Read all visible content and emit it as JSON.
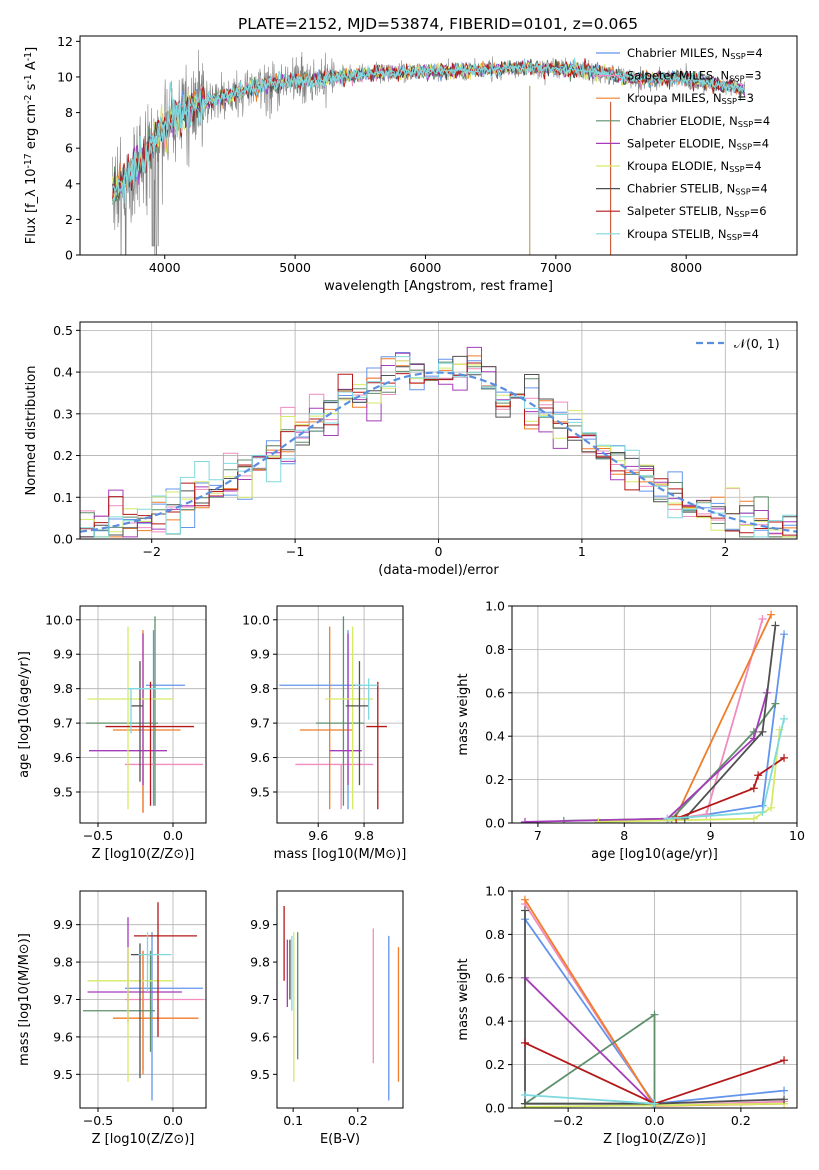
{
  "chart_data": [
    {
      "id": "spectrum",
      "type": "line",
      "title": "PLATE=2152, MJD=53874, FIBERID=0101, z=0.065",
      "xlabel": "wavelength [Angstrom, rest frame]",
      "ylabel": "Flux [f_λ 10^-17 erg cm^-2 s^-1 A^-1]",
      "xlim": [
        3350,
        8850
      ],
      "ylim": [
        0,
        12.3
      ],
      "xticks": [
        4000,
        5000,
        6000,
        7000,
        8000
      ],
      "yticks": [
        0,
        2,
        4,
        6,
        8,
        10,
        12
      ],
      "data_color": "#808080",
      "data_range": [
        3600,
        8450
      ],
      "model_color": "#7fd9de",
      "legend_position": "upper right",
      "legend": [
        {
          "label": "Chabrier MILES, N_SSP=4",
          "color": "#6495ed"
        },
        {
          "label": "Salpeter MILES, N_SSP=3",
          "color": "#f08cbe"
        },
        {
          "label": "Kroupa MILES, N_SSP=3",
          "color": "#f07d28"
        },
        {
          "label": "Chabrier ELODIE, N_SSP=4",
          "color": "#5f8f6b"
        },
        {
          "label": "Salpeter ELODIE, N_SSP=4",
          "color": "#a53cba"
        },
        {
          "label": "Kroupa ELODIE, N_SSP=4",
          "color": "#d6ea66"
        },
        {
          "label": "Chabrier STELIB, N_SSP=4",
          "color": "#505050"
        },
        {
          "label": "Salpeter STELIB, N_SSP=6",
          "color": "#b41818"
        },
        {
          "label": "Kroupa STELIB, N_SSP=4",
          "color": "#7fd9de"
        }
      ],
      "continuum": [
        [
          3600,
          3.6
        ],
        [
          3800,
          5.0
        ],
        [
          4000,
          7.3
        ],
        [
          4200,
          8.3
        ],
        [
          4500,
          9.0
        ],
        [
          4800,
          9.6
        ],
        [
          5200,
          9.9
        ],
        [
          5600,
          10.2
        ],
        [
          6000,
          10.3
        ],
        [
          6400,
          10.4
        ],
        [
          6800,
          10.5
        ],
        [
          7200,
          10.4
        ],
        [
          7600,
          9.9
        ],
        [
          8000,
          9.9
        ],
        [
          8450,
          9.3
        ]
      ]
    },
    {
      "id": "residuals",
      "type": "histogram",
      "xlabel": "(data-model)/error",
      "ylabel": "Normed distribution",
      "xlim": [
        -2.5,
        2.5
      ],
      "ylim": [
        0,
        0.52
      ],
      "xticks": [
        -2,
        -1,
        0,
        1,
        2
      ],
      "yticks": [
        0.0,
        0.1,
        0.2,
        0.3,
        0.4,
        0.5
      ],
      "grid": true,
      "legend": [
        {
          "label": "𝒩(0, 1)",
          "color": "#5a8fe0",
          "style": "dashed"
        }
      ],
      "bin_width": 0.1,
      "n_models": 9
    },
    {
      "id": "age-vs-Z",
      "type": "scatter",
      "xlabel": "Z [log10(Z/Z⊙)]",
      "ylabel": "age  [log10(age/yr)]",
      "xlim": [
        -0.62,
        0.22
      ],
      "ylim": [
        9.41,
        10.04
      ],
      "xticks": [
        -0.5,
        0.0
      ],
      "yticks": [
        9.5,
        9.6,
        9.7,
        9.8,
        9.9,
        10.0
      ],
      "grid": true,
      "points": [
        {
          "x": -0.13,
          "y": 9.81,
          "xerr": [
            0.05,
            0.21
          ],
          "yerr": [
            0.35,
            0.16
          ],
          "color": "#6495ed"
        },
        {
          "x": -0.2,
          "y": 9.58,
          "xerr": [
            0.12,
            0.4
          ],
          "yerr": [
            0.14,
            0.0
          ],
          "color": "#f08cbe"
        },
        {
          "x": -0.2,
          "y": 9.68,
          "xerr": [
            0.2,
            0.25
          ],
          "yerr": [
            0.24,
            0.29
          ],
          "color": "#f07d28"
        },
        {
          "x": -0.12,
          "y": 9.7,
          "xerr": [
            0.46,
            0.02
          ],
          "yerr": [
            0.24,
            0.31
          ],
          "color": "#5f8f6b"
        },
        {
          "x": -0.2,
          "y": 9.62,
          "xerr": [
            0.36,
            0.16
          ],
          "yerr": [
            0.1,
            0.34
          ],
          "color": "#a53cba"
        },
        {
          "x": -0.3,
          "y": 9.77,
          "xerr": [
            0.27,
            0.3
          ],
          "yerr": [
            0.32,
            0.21
          ],
          "color": "#d6ea66"
        },
        {
          "x": -0.22,
          "y": 9.75,
          "xerr": [
            0.06,
            0.02
          ],
          "yerr": [
            0.22,
            0.13
          ],
          "color": "#505050"
        },
        {
          "x": -0.15,
          "y": 9.69,
          "xerr": [
            0.3,
            0.29
          ],
          "yerr": [
            0.23,
            0.13
          ],
          "color": "#b41818"
        },
        {
          "x": -0.28,
          "y": 9.8,
          "xerr": [
            0.02,
            0.26
          ],
          "yerr": [
            0.13,
            0.0
          ],
          "color": "#7fd9de"
        }
      ]
    },
    {
      "id": "age-vs-mass",
      "type": "scatter",
      "xlabel": "mass [log10(M/M⊙)]",
      "xlim": [
        9.42,
        9.97
      ],
      "ylim": [
        9.41,
        10.04
      ],
      "xticks": [
        9.6,
        9.8
      ],
      "yticks": [
        9.5,
        9.6,
        9.7,
        9.8,
        9.9,
        10.0
      ],
      "grid": true,
      "points": [
        {
          "x": 9.73,
          "y": 9.81,
          "xerr": [
            0.3,
            0.06
          ],
          "yerr": [
            0.36,
            0.16
          ],
          "color": "#6495ed"
        },
        {
          "x": 9.7,
          "y": 9.58,
          "xerr": [
            0.2,
            0.14
          ],
          "yerr": [
            0.13,
            0.0
          ],
          "color": "#f08cbe"
        },
        {
          "x": 9.65,
          "y": 9.68,
          "xerr": [
            0.13,
            0.1
          ],
          "yerr": [
            0.23,
            0.3
          ],
          "color": "#f07d28"
        },
        {
          "x": 9.71,
          "y": 9.7,
          "xerr": [
            0.12,
            0.09
          ],
          "yerr": [
            0.24,
            0.31
          ],
          "color": "#5f8f6b"
        },
        {
          "x": 9.73,
          "y": 9.62,
          "xerr": [
            0.08,
            0.06
          ],
          "yerr": [
            0.1,
            0.34
          ],
          "color": "#a53cba"
        },
        {
          "x": 9.75,
          "y": 9.77,
          "xerr": [
            0.12,
            0.09
          ],
          "yerr": [
            0.32,
            0.21
          ],
          "color": "#d6ea66"
        },
        {
          "x": 9.78,
          "y": 9.75,
          "xerr": [
            0.06,
            0.04
          ],
          "yerr": [
            0.23,
            0.13
          ],
          "color": "#505050"
        },
        {
          "x": 9.86,
          "y": 9.69,
          "xerr": [
            0.05,
            0.04
          ],
          "yerr": [
            0.24,
            0.13
          ],
          "color": "#b41818"
        },
        {
          "x": 9.82,
          "y": 9.81,
          "xerr": [
            0.06,
            0.04
          ],
          "yerr": [
            0.1,
            0.02
          ],
          "color": "#7fd9de"
        }
      ]
    },
    {
      "id": "weight-vs-age",
      "type": "line",
      "xlabel": "age  [log10(age/yr)]",
      "ylabel": "mass weight",
      "xlim": [
        6.7,
        10.0
      ],
      "ylim": [
        0,
        1.0
      ],
      "xticks": [
        7,
        8,
        9,
        10
      ],
      "yticks": [
        0.0,
        0.2,
        0.4,
        0.6,
        0.8,
        1.0
      ],
      "grid": true,
      "series": [
        {
          "color": "#6495ed",
          "x": [
            8.5,
            9.6,
            9.85
          ],
          "y": [
            0.01,
            0.08,
            0.87
          ]
        },
        {
          "color": "#f08cbe",
          "x": [
            8.6,
            8.95,
            9.6
          ],
          "y": [
            0.02,
            0.04,
            0.94
          ]
        },
        {
          "color": "#f07d28",
          "x": [
            8.6,
            9.7
          ],
          "y": [
            0.03,
            0.96
          ]
        },
        {
          "color": "#5f8f6b",
          "x": [
            7.3,
            8.55,
            9.5,
            9.75
          ],
          "y": [
            0.01,
            0.02,
            0.42,
            0.55
          ]
        },
        {
          "color": "#a53cba",
          "x": [
            6.85,
            8.5,
            9.5,
            9.65
          ],
          "y": [
            0.005,
            0.02,
            0.39,
            0.6
          ]
        },
        {
          "color": "#d6ea66",
          "x": [
            7.7,
            9.5,
            9.7,
            9.8
          ],
          "y": [
            0.005,
            0.02,
            0.07,
            0.43
          ]
        },
        {
          "color": "#505050",
          "x": [
            8.7,
            9.6,
            9.75
          ],
          "y": [
            0.02,
            0.42,
            0.91
          ]
        },
        {
          "color": "#b41818",
          "x": [
            8.6,
            9.5,
            9.55,
            9.85
          ],
          "y": [
            0.02,
            0.16,
            0.22,
            0.3
          ]
        },
        {
          "color": "#7fd9de",
          "x": [
            8.5,
            9.6,
            9.85
          ],
          "y": [
            0.02,
            0.05,
            0.48
          ]
        }
      ]
    },
    {
      "id": "mass-vs-Z",
      "type": "scatter",
      "xlabel": "Z [log10(Z/Z⊙)]",
      "ylabel": "mass [log10(M/M⊙)]",
      "xlim": [
        -0.62,
        0.22
      ],
      "ylim": [
        9.41,
        9.99
      ],
      "xticks": [
        -0.5,
        0.0
      ],
      "yticks": [
        9.5,
        9.6,
        9.7,
        9.8,
        9.9
      ],
      "grid": true,
      "points": [
        {
          "x": -0.14,
          "y": 9.73,
          "xerr": [
            0.18,
            0.34
          ],
          "yerr": [
            0.3,
            0.15
          ],
          "color": "#6495ed"
        },
        {
          "x": -0.2,
          "y": 9.7,
          "xerr": [
            0.12,
            0.4
          ],
          "yerr": [
            0.19,
            0.13
          ],
          "color": "#f08cbe"
        },
        {
          "x": -0.2,
          "y": 9.65,
          "xerr": [
            0.2,
            0.37
          ],
          "yerr": [
            0.15,
            0.18
          ],
          "color": "#f07d28"
        },
        {
          "x": -0.15,
          "y": 9.67,
          "xerr": [
            0.45,
            0.03
          ],
          "yerr": [
            0.11,
            0.16
          ],
          "color": "#5f8f6b"
        },
        {
          "x": -0.3,
          "y": 9.72,
          "xerr": [
            0.27,
            0.36
          ],
          "yerr": [
            0.08,
            0.2
          ],
          "color": "#a53cba"
        },
        {
          "x": -0.3,
          "y": 9.75,
          "xerr": [
            0.27,
            0.3
          ],
          "yerr": [
            0.27,
            0.09
          ],
          "color": "#d6ea66"
        },
        {
          "x": -0.22,
          "y": 9.82,
          "xerr": [
            0.06,
            0.02
          ],
          "yerr": [
            0.33,
            0.03
          ],
          "color": "#505050"
        },
        {
          "x": -0.1,
          "y": 9.87,
          "xerr": [
            0.16,
            0.26
          ],
          "yerr": [
            0.27,
            0.09
          ],
          "color": "#b41818"
        },
        {
          "x": -0.17,
          "y": 9.82,
          "xerr": [
            0.06,
            0.16
          ],
          "yerr": [
            0.1,
            0.06
          ],
          "color": "#7fd9de"
        }
      ]
    },
    {
      "id": "mass-vs-ebv",
      "type": "scatter",
      "xlabel": "E(B-V)",
      "xlim": [
        0.075,
        0.27
      ],
      "ylim": [
        9.41,
        9.99
      ],
      "xticks": [
        0.1,
        0.2
      ],
      "yticks": [
        9.5,
        9.6,
        9.7,
        9.8,
        9.9
      ],
      "grid": false,
      "points": [
        {
          "x": 0.248,
          "y": 9.65,
          "xerr": [
            0,
            0
          ],
          "yerr": [
            0.22,
            0.22
          ],
          "color": "#6495ed"
        },
        {
          "x": 0.224,
          "y": 9.71,
          "xerr": [
            0,
            0
          ],
          "yerr": [
            0.18,
            0.18
          ],
          "color": "#f08cbe"
        },
        {
          "x": 0.263,
          "y": 9.66,
          "xerr": [
            0,
            0
          ],
          "yerr": [
            0.18,
            0.18
          ],
          "color": "#f07d28"
        },
        {
          "x": 0.107,
          "y": 9.71,
          "xerr": [
            0,
            0
          ],
          "yerr": [
            0.17,
            0.17
          ],
          "color": "#5f8f6b"
        },
        {
          "x": 0.091,
          "y": 9.77,
          "xerr": [
            0,
            0
          ],
          "yerr": [
            0.09,
            0.09
          ],
          "color": "#a53cba"
        },
        {
          "x": 0.101,
          "y": 9.68,
          "xerr": [
            0,
            0
          ],
          "yerr": [
            0.2,
            0.2
          ],
          "color": "#d6ea66"
        },
        {
          "x": 0.095,
          "y": 9.78,
          "xerr": [
            0,
            0
          ],
          "yerr": [
            0.08,
            0.08
          ],
          "color": "#505050"
        },
        {
          "x": 0.086,
          "y": 9.85,
          "xerr": [
            0,
            0
          ],
          "yerr": [
            0.1,
            0.1
          ],
          "color": "#b41818"
        },
        {
          "x": 0.098,
          "y": 9.77,
          "xerr": [
            0,
            0
          ],
          "yerr": [
            0.1,
            0.1
          ],
          "color": "#7fd9de"
        }
      ]
    },
    {
      "id": "weight-vs-Z",
      "type": "line",
      "xlabel": "Z [log10(Z/Z⊙)]",
      "ylabel": "mass weight",
      "xlim": [
        -0.33,
        0.33
      ],
      "ylim": [
        0,
        1.0
      ],
      "xticks": [
        -0.2,
        0.0,
        0.2
      ],
      "yticks": [
        0.0,
        0.2,
        0.4,
        0.6,
        0.8,
        1.0
      ],
      "grid": true,
      "series": [
        {
          "color": "#6495ed",
          "x": [
            -0.3,
            0.0,
            0.3
          ],
          "y": [
            0.87,
            0.02,
            0.08
          ]
        },
        {
          "color": "#f08cbe",
          "x": [
            -0.3,
            0.0,
            0.3
          ],
          "y": [
            0.94,
            0.01,
            0.03
          ]
        },
        {
          "color": "#f07d28",
          "x": [
            -0.3,
            0.0,
            0.3
          ],
          "y": [
            0.96,
            0.01,
            0.02
          ]
        },
        {
          "color": "#5f8f6b",
          "x": [
            -0.3,
            0.0,
            0.0,
            -0.3
          ],
          "y": [
            0.02,
            0.43,
            0.02,
            0.02
          ]
        },
        {
          "color": "#a53cba",
          "x": [
            -0.3,
            0.0
          ],
          "y": [
            0.6,
            0.01
          ]
        },
        {
          "color": "#d6ea66",
          "x": [
            -0.3,
            0.3
          ],
          "y": [
            0.005,
            0.02
          ]
        },
        {
          "color": "#505050",
          "x": [
            -0.3,
            -0.3,
            0.0,
            0.3
          ],
          "y": [
            0.91,
            0.02,
            0.02,
            0.04
          ]
        },
        {
          "color": "#b41818",
          "x": [
            -0.3,
            0.0,
            0.3
          ],
          "y": [
            0.3,
            0.02,
            0.22
          ]
        },
        {
          "color": "#7fd9de",
          "x": [
            -0.3,
            0.0
          ],
          "y": [
            0.06,
            0.02
          ]
        }
      ]
    }
  ]
}
